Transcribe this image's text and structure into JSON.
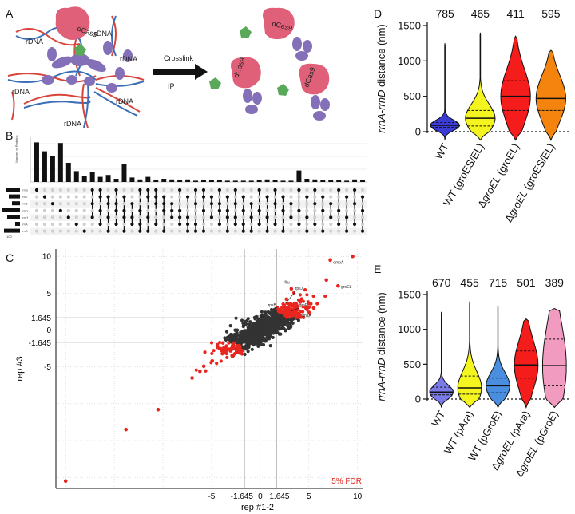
{
  "panels": {
    "A": "A",
    "B": "B",
    "C": "C",
    "D": "D",
    "E": "E"
  },
  "panel_a": {
    "rdna_label": "rDNA",
    "dcas9_label": "dCas9",
    "step1": "Crosslink",
    "step2": "IP",
    "colors": {
      "dcas9": "#e0607a",
      "protein": "#8470b8",
      "tag": "#5aa85a",
      "dna_red": "#d9443a",
      "dna_blue": "#3a6fb8"
    }
  },
  "panel_b": {
    "ylabel": "Number of Proteins",
    "row_labels": [
      "rrnG",
      "rrnE",
      "rrnB",
      "rrnD",
      "rrnH",
      "rrnA",
      "rrnC"
    ],
    "set_axis_label": "100",
    "bar_values": [
      62,
      48,
      40,
      61,
      30,
      17,
      10,
      15,
      8,
      11,
      5,
      28,
      7,
      4,
      8,
      3,
      5,
      4,
      3,
      4,
      2,
      3,
      3,
      3,
      2,
      2,
      2,
      2,
      3,
      4,
      3,
      2,
      2,
      18,
      5,
      4,
      3,
      3,
      3,
      2,
      4,
      3
    ]
  },
  "chart_data": [
    {
      "panel": "C",
      "type": "scatter",
      "xlabel": "rep #1-2",
      "ylabel": "rep #3",
      "x_ticks": [
        "-5",
        "-1.645",
        "0",
        "1.645",
        "5",
        "10"
      ],
      "y_ticks": [
        "10",
        "5",
        "1.645",
        "0",
        "-1.645",
        "-5"
      ],
      "threshold": 1.645,
      "legend": "5% FDR",
      "annotations": [
        "ompA",
        "groEL",
        "fliu",
        "rplD",
        "rpsB",
        "rpsG",
        "grpE",
        "dnaK",
        "hupA"
      ],
      "colors": {
        "significant": "#e8261f",
        "other": "#333333"
      },
      "highlight_points": [
        {
          "x": -20.0,
          "y": -20.5
        },
        {
          "x": -13.8,
          "y": -13.5
        },
        {
          "x": -10.5,
          "y": -10.8
        },
        {
          "x": -7.0,
          "y": -6.5
        },
        {
          "x": -6.2,
          "y": -5.6
        },
        {
          "x": -5.8,
          "y": -4.9
        },
        {
          "x": 9.5,
          "y": 10.0
        },
        {
          "x": 7.2,
          "y": 9.5
        },
        {
          "x": 8.0,
          "y": 6.0
        },
        {
          "x": 6.8,
          "y": 6.8
        },
        {
          "x": 5.5,
          "y": 3.0
        },
        {
          "x": 4.8,
          "y": 2.8
        },
        {
          "x": 3.2,
          "y": 5.6
        },
        {
          "x": 2.7,
          "y": 4.2
        },
        {
          "x": 3.6,
          "y": 3.5
        },
        {
          "x": 2.8,
          "y": 2.6
        }
      ]
    },
    {
      "panel": "D",
      "type": "violin",
      "ylabel_italic": "rrnA-rrnD",
      "ylabel_rest": " distance (nm)",
      "ylim": [
        0,
        1500
      ],
      "yticks": [
        "0",
        "500",
        "1000",
        "1500"
      ],
      "categories": [
        "WT",
        "WT (groES/EL)",
        "ΔgroEL (groEL)",
        "ΔgroEL (groES/EL)"
      ],
      "counts": [
        "785",
        "465",
        "411",
        "595"
      ],
      "colors": [
        "#3b3bd6",
        "#f4f41e",
        "#f51c1c",
        "#f5840f"
      ],
      "medians": [
        90,
        190,
        500,
        470
      ],
      "q1": [
        60,
        80,
        300,
        300
      ],
      "q3": [
        130,
        300,
        720,
        660
      ]
    },
    {
      "panel": "E",
      "type": "violin",
      "ylabel_italic": "rrnA-rrnD",
      "ylabel_rest": " distance (nm)",
      "ylim": [
        0,
        1500
      ],
      "yticks": [
        "0",
        "500",
        "1000",
        "1500"
      ],
      "categories": [
        "WT",
        "WT (pAra)",
        "WT (pGroE)",
        "ΔgroEL (pAra)",
        "ΔgroEL (pGroE)"
      ],
      "counts": [
        "670",
        "455",
        "715",
        "501",
        "389"
      ],
      "colors": [
        "#7a7ae8",
        "#f4f41e",
        "#4a8ee0",
        "#f51c1c",
        "#f29bc0"
      ],
      "medians": [
        100,
        160,
        190,
        490,
        480
      ],
      "q1": [
        60,
        70,
        90,
        300,
        190
      ],
      "q3": [
        170,
        330,
        300,
        690,
        860
      ]
    }
  ]
}
